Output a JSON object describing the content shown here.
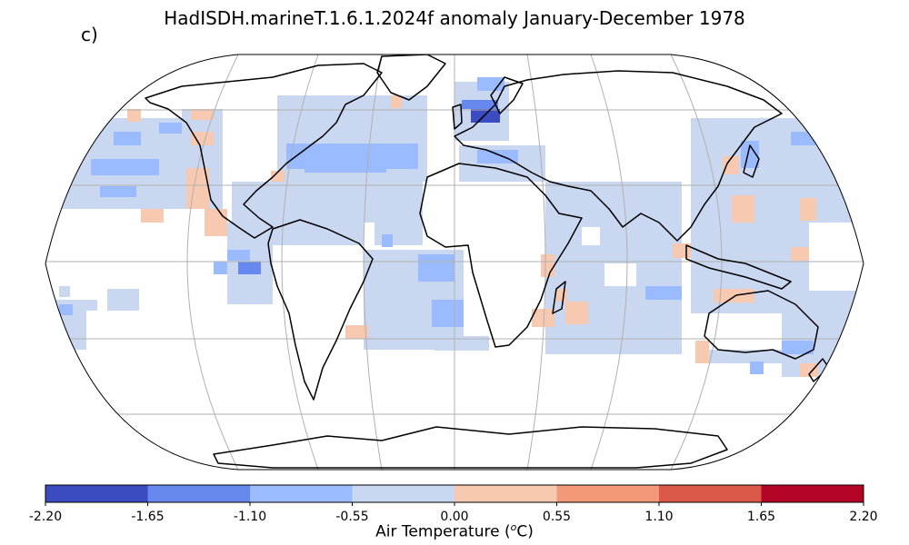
{
  "panel_label": "c)",
  "title": "HadISDH.marineT.1.6.1.2024f anomaly January-December 1978",
  "colorbar": {
    "label": "Air Temperature",
    "unit_base": "o",
    "unit_suffix": "C",
    "ticks": [
      "-2.20",
      "-1.65",
      "-1.10",
      "-0.55",
      "0.00",
      "0.55",
      "1.10",
      "1.65",
      "2.20"
    ],
    "colors": [
      "#3b4cc0",
      "#6788ee",
      "#9abbff",
      "#c9d7f0",
      "#f6c9b0",
      "#f4987a",
      "#d95847",
      "#b40426"
    ]
  },
  "map": {
    "projection": "robinson",
    "gridlines": true,
    "ocean_color": "#ffffff",
    "coastline_color": "#000000"
  }
}
